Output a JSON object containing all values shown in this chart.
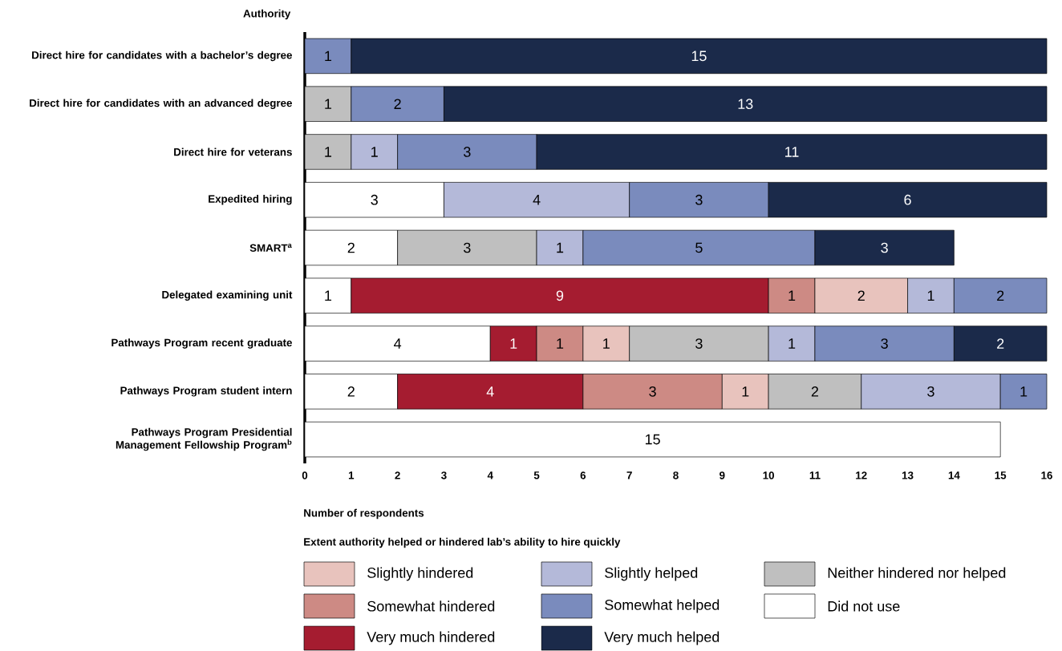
{
  "chart_data": {
    "type": "bar",
    "orientation": "horizontal",
    "stacked": true,
    "ylabel": "Authority",
    "xlabel": "Number of respondents",
    "legend_title": "Extent authority helped or hindered lab’s ability to hire quickly",
    "categories": [
      "Direct hire for candidates with a bachelor’s degree",
      "Direct hire for candidates with an advanced degree",
      "Direct hire for veterans",
      "Expedited hiring",
      "SMART$^{a}$",
      "Delegated examining unit",
      "Pathways Program recent graduate",
      "Pathways Program student intern",
      "Pathways Program Presidential Management Fellowship Program$^{b}$"
    ],
    "series": [
      {
        "name": "Did not use",
        "color": "#ffffff",
        "values": [
          null,
          null,
          null,
          3,
          2,
          1,
          4,
          2,
          15
        ]
      },
      {
        "name": "Very much hindered",
        "color": "#a51c30",
        "values": [
          null,
          null,
          null,
          null,
          null,
          9,
          1,
          4,
          null
        ]
      },
      {
        "name": "Somewhat hindered",
        "color": "#cd8a84",
        "values": [
          null,
          null,
          null,
          null,
          null,
          1,
          1,
          3,
          null
        ]
      },
      {
        "name": "Slightly hindered",
        "color": "#e8c3bd",
        "values": [
          null,
          null,
          null,
          null,
          null,
          2,
          1,
          1,
          null
        ]
      },
      {
        "name": "Neither hindered nor helped",
        "color": "#bfbfbf",
        "values": [
          null,
          1,
          1,
          null,
          3,
          null,
          3,
          2,
          null
        ]
      },
      {
        "name": "Slightly helped",
        "color": "#b4b9d9",
        "values": [
          null,
          null,
          1,
          4,
          1,
          1,
          1,
          3,
          null
        ]
      },
      {
        "name": "Somewhat helped",
        "color": "#7a8bbd",
        "values": [
          1,
          2,
          3,
          3,
          5,
          2,
          3,
          1,
          null
        ]
      },
      {
        "name": "Very much helped",
        "color": "#1b2a4a",
        "values": [
          15,
          13,
          11,
          6,
          3,
          null,
          2,
          null,
          null
        ]
      }
    ],
    "xlim": [
      0,
      16
    ],
    "xticks": [
      0,
      1,
      2,
      3,
      4,
      5,
      6,
      7,
      8,
      9,
      10,
      11,
      12,
      13,
      14,
      15,
      16
    ],
    "data_labels": true,
    "legend": "bottom"
  }
}
